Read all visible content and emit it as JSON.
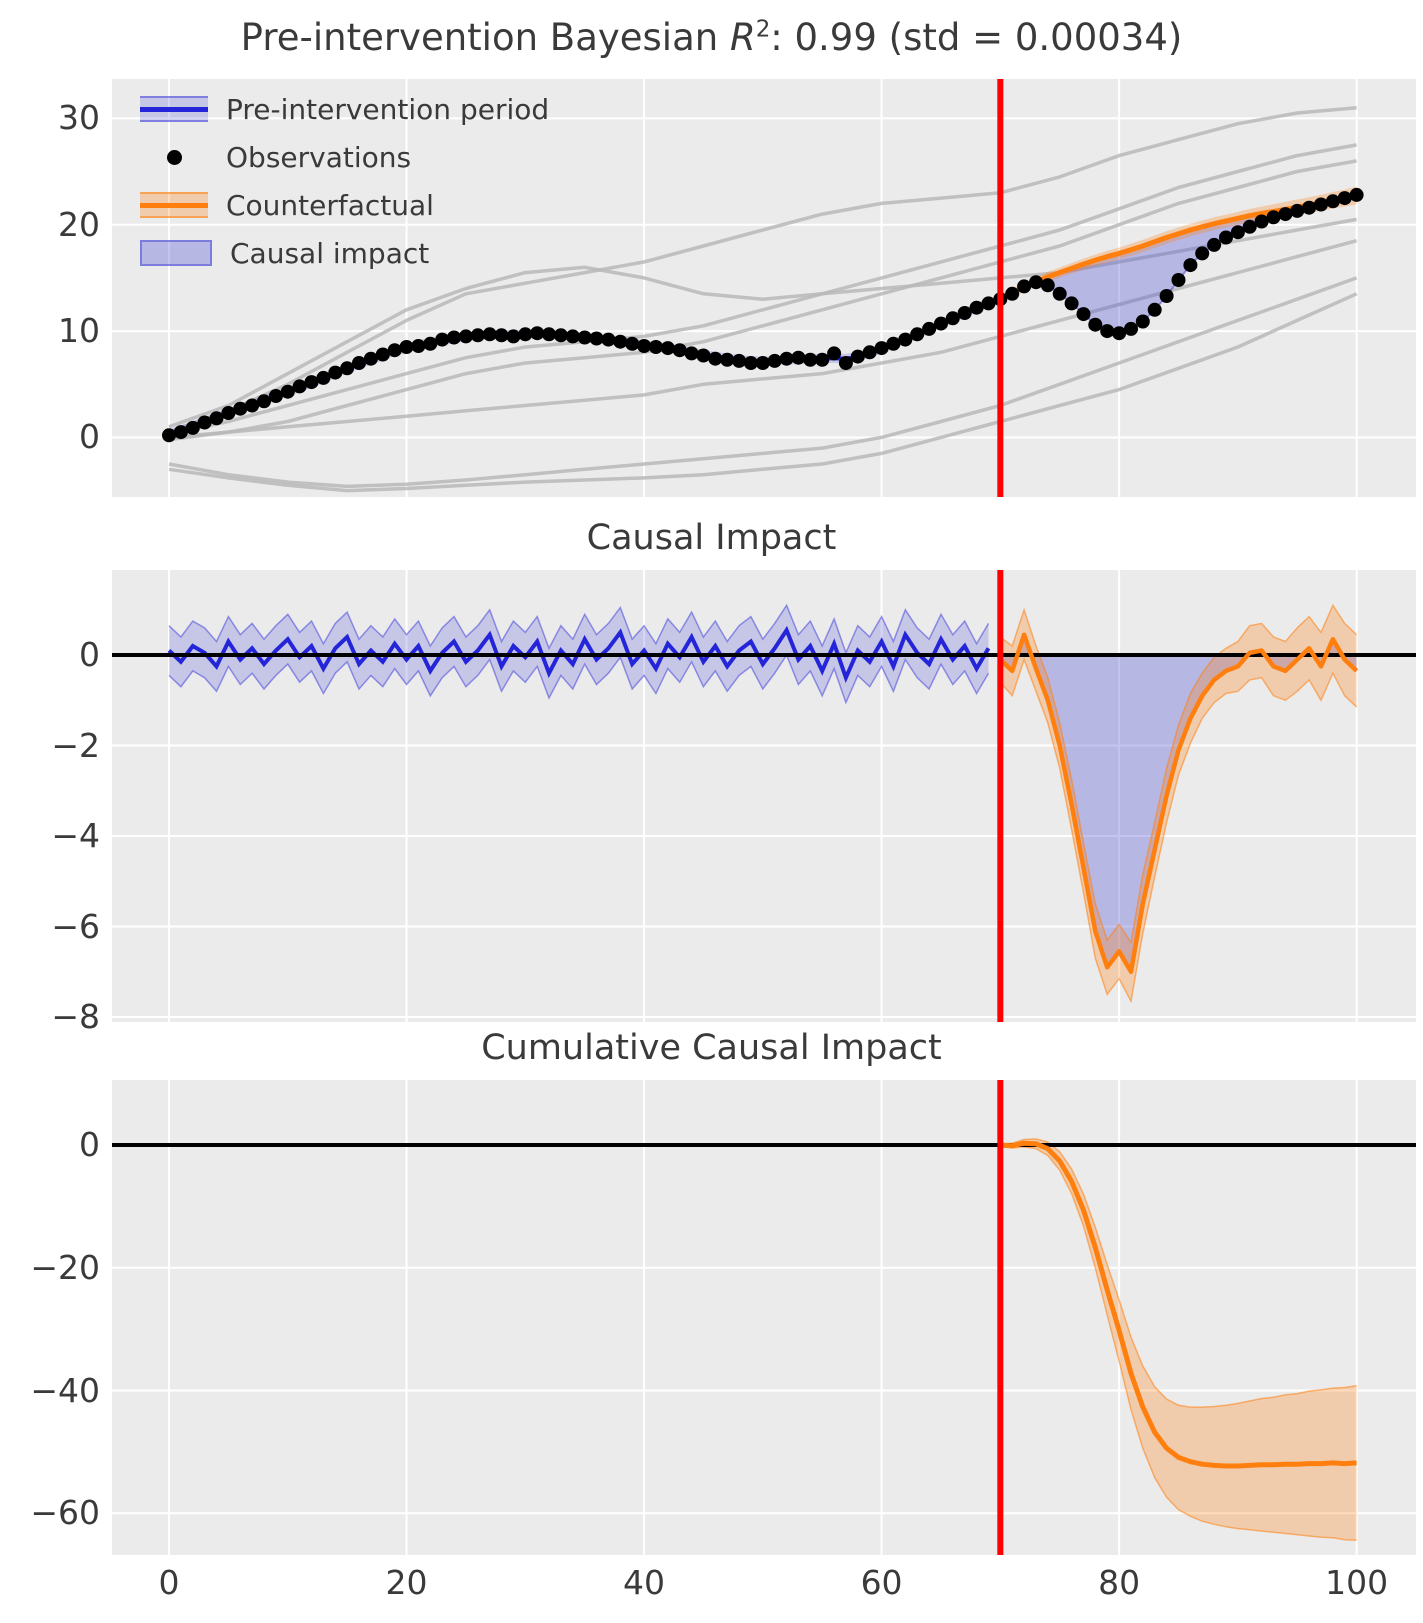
{
  "figure_title": "Bayesian causal impact figure",
  "colors": {
    "axes_bg": "#ebebeb",
    "grid": "#ffffff",
    "text": "#3a3a3a",
    "blue_line": "#2424d9",
    "blue_band": "rgba(70,70,220,0.22)",
    "blue_band_edge": "rgba(70,70,220,0.55)",
    "orange_line": "#ff7f0e",
    "orange_band": "rgba(255,127,14,0.28)",
    "orange_band_edge": "rgba(255,127,14,0.55)",
    "impact_fill": "rgba(85,85,215,0.35)",
    "impact_edge": "rgba(85,85,215,0.6)",
    "control_line": "#b8b8b8",
    "observation_dot": "#000000",
    "intervention_line": "#ff0000",
    "zero_line": "#000000"
  },
  "chart_data": [
    {
      "type": "line",
      "title": {
        "prefix": "Pre-intervention Bayesian ",
        "r": "R",
        "sup": "2",
        "suffix": ": 0.99 (std = 0.00034)"
      },
      "xlim": [
        -4.8,
        105.0
      ],
      "ylim": [
        -5.6,
        33.7
      ],
      "grid": true,
      "legend_position": "upper left",
      "intervention_x": 70,
      "xticks": [
        0,
        20,
        40,
        60,
        80,
        100
      ],
      "yticks": [
        {
          "v": 30,
          "label": "30"
        },
        {
          "v": 20,
          "label": "20"
        },
        {
          "v": 10,
          "label": "10"
        },
        {
          "v": 0,
          "label": "0"
        }
      ],
      "legend": [
        {
          "label": "Pre-intervention period",
          "swatch": "blue-band-line"
        },
        {
          "label": "Observations",
          "swatch": "dot"
        },
        {
          "label": "Counterfactual",
          "swatch": "orange-band-line"
        },
        {
          "label": "Causal impact",
          "swatch": "purple-fill"
        }
      ],
      "series": {
        "observations": {
          "x0": 0,
          "dx": 1,
          "y": [
            0.2,
            0.5,
            0.9,
            1.4,
            1.8,
            2.3,
            2.7,
            3.0,
            3.4,
            3.9,
            4.3,
            4.8,
            5.2,
            5.6,
            6.1,
            6.5,
            7.0,
            7.4,
            7.8,
            8.2,
            8.5,
            8.6,
            8.8,
            9.2,
            9.4,
            9.5,
            9.6,
            9.7,
            9.6,
            9.5,
            9.7,
            9.8,
            9.7,
            9.6,
            9.5,
            9.4,
            9.3,
            9.2,
            9.0,
            8.8,
            8.6,
            8.5,
            8.4,
            8.2,
            7.9,
            7.7,
            7.4,
            7.3,
            7.2,
            7.0,
            7.0,
            7.2,
            7.4,
            7.5,
            7.3,
            7.3,
            7.9,
            7.0,
            7.6,
            8.0,
            8.4,
            8.8,
            9.2,
            9.7,
            10.2,
            10.7,
            11.2,
            11.7,
            12.2,
            12.6,
            13.0,
            13.5,
            14.2,
            14.6,
            14.3,
            13.5,
            12.6,
            11.6,
            10.6,
            10.0,
            9.8,
            10.2,
            10.9,
            12.0,
            13.3,
            14.8,
            16.2,
            17.3,
            18.1,
            18.8,
            19.3,
            19.8,
            20.3,
            20.7,
            21.0,
            21.3,
            21.6,
            21.9,
            22.2,
            22.5,
            22.8
          ]
        },
        "pre_fit": {
          "x0": 0,
          "dx": 1,
          "band_halfwidth": 0.45,
          "y": [
            0.3,
            0.7,
            1.1,
            1.5,
            1.9,
            2.3,
            2.7,
            3.1,
            3.5,
            3.9,
            4.3,
            4.7,
            5.1,
            5.6,
            6.0,
            6.5,
            6.9,
            7.3,
            7.7,
            8.1,
            8.4,
            8.7,
            8.9,
            9.1,
            9.3,
            9.5,
            9.6,
            9.65,
            9.65,
            9.65,
            9.7,
            9.75,
            9.7,
            9.6,
            9.5,
            9.4,
            9.3,
            9.15,
            9.0,
            8.85,
            8.7,
            8.55,
            8.4,
            8.2,
            8.0,
            7.8,
            7.6,
            7.45,
            7.3,
            7.2,
            7.15,
            7.2,
            7.3,
            7.35,
            7.4,
            7.4,
            7.45,
            7.4,
            7.6,
            7.95,
            8.35,
            8.8,
            9.25,
            9.7,
            10.2,
            10.7,
            11.2,
            11.7,
            12.2,
            12.65
          ]
        },
        "counterfactual": {
          "x0": 70,
          "dx": 1,
          "y": [
            13.1,
            13.6,
            14.1,
            14.6,
            15.1,
            15.5,
            15.9,
            16.3,
            16.65,
            17.0,
            17.3,
            17.65,
            18.0,
            18.4,
            18.8,
            19.15,
            19.5,
            19.8,
            20.1,
            20.35,
            20.6,
            20.85,
            21.05,
            21.25,
            21.45,
            21.65,
            21.85,
            22.05,
            22.3,
            22.5,
            22.75
          ],
          "band_halfwidth": [
            0.35,
            0.4,
            0.42,
            0.44,
            0.46,
            0.48,
            0.5,
            0.52,
            0.54,
            0.55,
            0.56,
            0.57,
            0.58,
            0.59,
            0.6,
            0.6,
            0.6,
            0.6,
            0.6,
            0.6,
            0.62,
            0.64,
            0.66,
            0.68,
            0.7,
            0.72,
            0.74,
            0.76,
            0.78,
            0.8,
            0.85
          ]
        },
        "controls": {
          "x0": 0,
          "dx": 5,
          "lines": [
            [
              0.5,
              2.5,
              5.0,
              8.0,
              11.0,
              13.5,
              14.5,
              15.5,
              16.5,
              18.0,
              19.5,
              21.0,
              22.0,
              22.5,
              23.0,
              24.5,
              26.5,
              28.0,
              29.5,
              30.5,
              31.0
            ],
            [
              0.3,
              1.5,
              3.0,
              4.5,
              6.0,
              7.5,
              8.5,
              9.0,
              9.5,
              10.5,
              12.0,
              13.5,
              15.0,
              16.5,
              18.0,
              19.5,
              21.5,
              23.5,
              25.0,
              26.5,
              27.5
            ],
            [
              -0.2,
              0.5,
              1.5,
              3.0,
              4.5,
              6.0,
              7.0,
              7.5,
              8.0,
              9.0,
              10.5,
              12.0,
              13.5,
              15.0,
              16.5,
              18.0,
              20.0,
              22.0,
              23.5,
              25.0,
              26.0
            ],
            [
              1.0,
              3.0,
              6.0,
              9.0,
              12.0,
              14.0,
              15.5,
              16.0,
              15.0,
              13.5,
              13.0,
              13.5,
              14.0,
              14.5,
              15.0,
              15.5,
              16.5,
              17.5,
              18.5,
              19.5,
              20.5
            ],
            [
              0.0,
              0.5,
              1.0,
              1.5,
              2.0,
              2.5,
              3.0,
              3.5,
              4.0,
              5.0,
              5.5,
              6.0,
              7.0,
              8.0,
              9.5,
              11.0,
              12.5,
              14.0,
              15.5,
              17.0,
              18.5
            ],
            [
              -2.5,
              -3.5,
              -4.2,
              -4.6,
              -4.4,
              -4.0,
              -3.5,
              -3.0,
              -2.5,
              -2.0,
              -1.5,
              -1.0,
              0.0,
              1.5,
              3.0,
              5.0,
              7.0,
              9.0,
              11.0,
              13.0,
              15.0
            ],
            [
              -3.0,
              -3.8,
              -4.5,
              -5.0,
              -4.8,
              -4.5,
              -4.2,
              -4.0,
              -3.8,
              -3.5,
              -3.0,
              -2.5,
              -1.5,
              0.0,
              1.5,
              3.0,
              4.5,
              6.5,
              8.5,
              11.0,
              13.5
            ]
          ]
        }
      }
    },
    {
      "type": "line",
      "title": "Causal Impact",
      "xlim": [
        -4.8,
        105.0
      ],
      "ylim": [
        -8.11,
        1.88
      ],
      "grid": true,
      "zero_line": 0,
      "intervention_x": 70,
      "yticks": [
        {
          "v": 0,
          "label": "0"
        },
        {
          "v": -2,
          "label": "−2"
        },
        {
          "v": -4,
          "label": "−4"
        },
        {
          "v": -6,
          "label": "−6"
        },
        {
          "v": -8,
          "label": "−8"
        }
      ],
      "series": {
        "impact_pre": {
          "x0": 0,
          "dx": 1,
          "band_halfwidth": 0.55,
          "y": [
            0.1,
            -0.15,
            0.2,
            0.05,
            -0.25,
            0.3,
            -0.1,
            0.15,
            -0.2,
            0.1,
            0.35,
            -0.05,
            0.2,
            -0.3,
            0.15,
            0.4,
            -0.2,
            0.1,
            -0.15,
            0.25,
            -0.1,
            0.2,
            -0.35,
            0.05,
            0.3,
            -0.15,
            0.1,
            0.45,
            -0.25,
            0.2,
            -0.05,
            0.3,
            -0.4,
            0.1,
            -0.2,
            0.35,
            -0.1,
            0.15,
            0.5,
            -0.2,
            0.1,
            -0.3,
            0.25,
            -0.05,
            0.4,
            -0.15,
            0.2,
            -0.25,
            0.1,
            0.3,
            -0.2,
            0.15,
            0.55,
            -0.1,
            0.2,
            -0.35,
            0.25,
            -0.5,
            0.1,
            -0.15,
            0.3,
            -0.25,
            0.45,
            0.05,
            -0.2,
            0.35,
            -0.1,
            0.2,
            -0.3,
            0.15
          ]
        },
        "impact_post": {
          "x0": 70,
          "dx": 1,
          "y": [
            -0.1,
            -0.35,
            0.45,
            -0.3,
            -1.0,
            -2.0,
            -3.3,
            -4.7,
            -6.1,
            -6.9,
            -6.55,
            -7.0,
            -5.5,
            -4.3,
            -3.1,
            -2.1,
            -1.4,
            -0.9,
            -0.55,
            -0.35,
            -0.25,
            0.05,
            0.1,
            -0.25,
            -0.35,
            -0.1,
            0.15,
            -0.25,
            0.35,
            -0.1,
            -0.35
          ],
          "band_halfwidth": [
            0.5,
            0.55,
            0.55,
            0.5,
            0.5,
            0.5,
            0.55,
            0.55,
            0.6,
            0.6,
            0.6,
            0.65,
            0.65,
            0.6,
            0.6,
            0.55,
            0.55,
            0.5,
            0.5,
            0.5,
            0.55,
            0.6,
            0.6,
            0.65,
            0.65,
            0.7,
            0.7,
            0.75,
            0.75,
            0.8,
            0.8
          ]
        }
      }
    },
    {
      "type": "line",
      "title": "Cumulative Causal Impact",
      "xlim": [
        -4.8,
        105.0
      ],
      "ylim": [
        -66.8,
        10.6
      ],
      "grid": true,
      "zero_line": 0,
      "intervention_x": 70,
      "yticks": [
        {
          "v": 0,
          "label": "0"
        },
        {
          "v": -20,
          "label": "−20"
        },
        {
          "v": -40,
          "label": "−40"
        },
        {
          "v": -60,
          "label": "−60"
        }
      ],
      "xtick_labels": [
        {
          "v": 0,
          "label": "0"
        },
        {
          "v": 20,
          "label": "20"
        },
        {
          "v": 40,
          "label": "40"
        },
        {
          "v": 60,
          "label": "60"
        },
        {
          "v": 80,
          "label": "80"
        },
        {
          "v": 100,
          "label": "100"
        }
      ],
      "series": {
        "cumulative": {
          "x0": 70,
          "dx": 1,
          "y": [
            0.0,
            -0.1,
            0.3,
            0.2,
            -0.6,
            -2.6,
            -5.9,
            -10.6,
            -16.7,
            -23.6,
            -30.2,
            -37.2,
            -42.7,
            -46.8,
            -49.4,
            -50.9,
            -51.6,
            -52.0,
            -52.2,
            -52.3,
            -52.3,
            -52.2,
            -52.1,
            -52.1,
            -52.0,
            -52.0,
            -51.9,
            -51.9,
            -51.8,
            -51.9,
            -51.8
          ],
          "band_halfwidth": [
            0.2,
            0.4,
            0.6,
            0.8,
            1.1,
            1.5,
            2.0,
            2.6,
            3.3,
            4.1,
            5.0,
            5.9,
            6.7,
            7.4,
            8.0,
            8.5,
            8.9,
            9.3,
            9.6,
            9.9,
            10.2,
            10.5,
            10.8,
            11.0,
            11.3,
            11.5,
            11.8,
            12.0,
            12.2,
            12.4,
            12.6
          ]
        }
      }
    }
  ]
}
